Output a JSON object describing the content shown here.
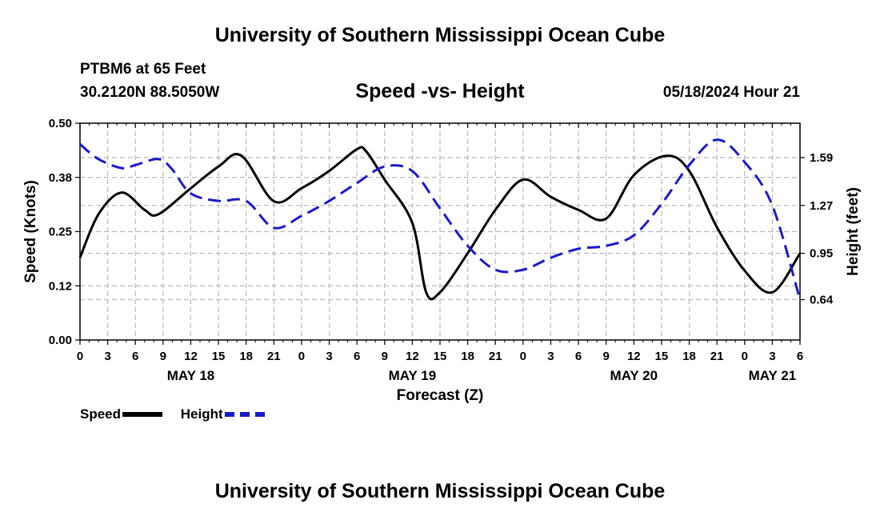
{
  "header": {
    "title": "University of Southern Mississippi Ocean Cube",
    "station": "PTBM6 at 65 Feet",
    "coords": "30.2120N  88.5050W",
    "date_hour": "05/18/2024 Hour 21"
  },
  "footer": {
    "title": "University of Southern Mississippi Ocean Cube"
  },
  "colors": {
    "speed": "#000000",
    "height": "#1a1acc",
    "grid": "#b8b8b8"
  },
  "chart_data": {
    "type": "line",
    "title": "Speed -vs- Height",
    "xlabel": "Forecast (Z)",
    "ylabel": "Speed (Knots)",
    "y2label": "Height (feet)",
    "x_hours_range": [
      0,
      78
    ],
    "xticks": [
      {
        "h": 0,
        "label": "0"
      },
      {
        "h": 3,
        "label": "3"
      },
      {
        "h": 6,
        "label": "6"
      },
      {
        "h": 9,
        "label": "9"
      },
      {
        "h": 12,
        "label": "12"
      },
      {
        "h": 15,
        "label": "15"
      },
      {
        "h": 18,
        "label": "18"
      },
      {
        "h": 21,
        "label": "21"
      },
      {
        "h": 24,
        "label": "0"
      },
      {
        "h": 27,
        "label": "3"
      },
      {
        "h": 30,
        "label": "6"
      },
      {
        "h": 33,
        "label": "9"
      },
      {
        "h": 36,
        "label": "12"
      },
      {
        "h": 39,
        "label": "15"
      },
      {
        "h": 42,
        "label": "18"
      },
      {
        "h": 45,
        "label": "21"
      },
      {
        "h": 48,
        "label": "0"
      },
      {
        "h": 51,
        "label": "3"
      },
      {
        "h": 54,
        "label": "6"
      },
      {
        "h": 57,
        "label": "9"
      },
      {
        "h": 60,
        "label": "12"
      },
      {
        "h": 63,
        "label": "15"
      },
      {
        "h": 66,
        "label": "18"
      },
      {
        "h": 69,
        "label": "21"
      },
      {
        "h": 72,
        "label": "0"
      },
      {
        "h": 75,
        "label": "3"
      },
      {
        "h": 78,
        "label": "6"
      }
    ],
    "day_labels": [
      {
        "h": 12,
        "label": "MAY 18"
      },
      {
        "h": 36,
        "label": "MAY 19"
      },
      {
        "h": 60,
        "label": "MAY 20"
      },
      {
        "h": 75,
        "label": "MAY 21"
      }
    ],
    "y_left": {
      "range": [
        0,
        0.5
      ],
      "ticks": [
        {
          "v": 0.0,
          "label": "0.00"
        },
        {
          "v": 0.125,
          "label": "0.12"
        },
        {
          "v": 0.25,
          "label": "0.25"
        },
        {
          "v": 0.375,
          "label": "0.38"
        },
        {
          "v": 0.5,
          "label": "0.50"
        }
      ]
    },
    "y_right": {
      "range": [
        0.37,
        1.82
      ],
      "ticks": [
        {
          "v": 0.64,
          "label": "0.64"
        },
        {
          "v": 0.95,
          "label": "0.95"
        },
        {
          "v": 1.27,
          "label": "1.27"
        },
        {
          "v": 1.59,
          "label": "1.59"
        }
      ]
    },
    "series": [
      {
        "name": "Speed",
        "axis": "left",
        "style": "solid",
        "x": [
          0,
          2,
          4.5,
          7,
          8.5,
          12,
          15,
          17.5,
          21,
          24,
          27,
          30,
          31,
          33,
          36,
          37.5,
          39,
          42,
          45,
          48,
          51,
          54,
          57,
          60,
          63.5,
          66,
          69,
          72,
          75,
          78
        ],
        "y": [
          0.19,
          0.29,
          0.34,
          0.3,
          0.29,
          0.35,
          0.4,
          0.425,
          0.32,
          0.35,
          0.39,
          0.44,
          0.435,
          0.37,
          0.27,
          0.11,
          0.11,
          0.2,
          0.3,
          0.37,
          0.33,
          0.3,
          0.28,
          0.38,
          0.425,
          0.39,
          0.26,
          0.16,
          0.11,
          0.2
        ]
      },
      {
        "name": "Height",
        "axis": "right",
        "style": "dashed",
        "x": [
          0,
          2,
          4.5,
          6,
          8.5,
          10,
          12,
          15,
          18,
          21,
          24,
          27,
          30,
          33,
          36,
          39,
          42,
          45,
          48,
          51,
          54,
          57,
          60,
          63,
          66,
          69,
          72,
          75,
          78
        ],
        "y": [
          1.68,
          1.58,
          1.52,
          1.54,
          1.58,
          1.51,
          1.35,
          1.3,
          1.3,
          1.12,
          1.2,
          1.3,
          1.42,
          1.53,
          1.5,
          1.25,
          1.0,
          0.84,
          0.84,
          0.92,
          0.98,
          1.0,
          1.07,
          1.28,
          1.54,
          1.71,
          1.56,
          1.27,
          0.64
        ]
      }
    ],
    "legend": [
      {
        "name": "Speed",
        "style": "solid"
      },
      {
        "name": "Height",
        "style": "dashed"
      }
    ],
    "grid": true,
    "legend_position": "bottom-left"
  }
}
